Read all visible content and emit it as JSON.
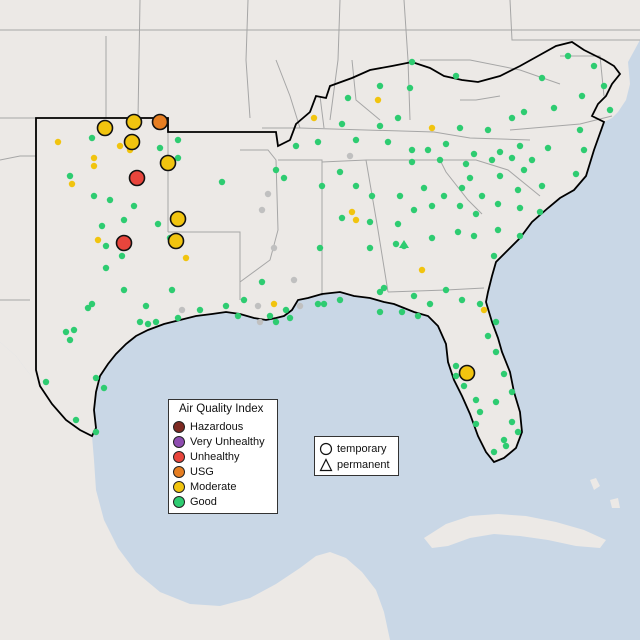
{
  "legend": {
    "title": "Air Quality Index",
    "items": [
      {
        "label": "Hazardous",
        "color": "#7e2a22"
      },
      {
        "label": "Very Unhealthy",
        "color": "#8e4cb0"
      },
      {
        "label": "Unhealthy",
        "color": "#e8453c"
      },
      {
        "label": "USG",
        "color": "#e67e22"
      },
      {
        "label": "Moderate",
        "color": "#f1c40f"
      },
      {
        "label": "Good",
        "color": "#2ecc71"
      }
    ]
  },
  "shape_legend": {
    "items": [
      {
        "label": "temporary",
        "shape": "circle-icon"
      },
      {
        "label": "permanent",
        "shape": "triangle-icon"
      }
    ]
  },
  "colors": {
    "water": "#c9d7e6",
    "land": "#ece9e6",
    "state_border": "#9a9a9a",
    "region_border": "#000000",
    "no_data": "#c0c0c0"
  }
}
